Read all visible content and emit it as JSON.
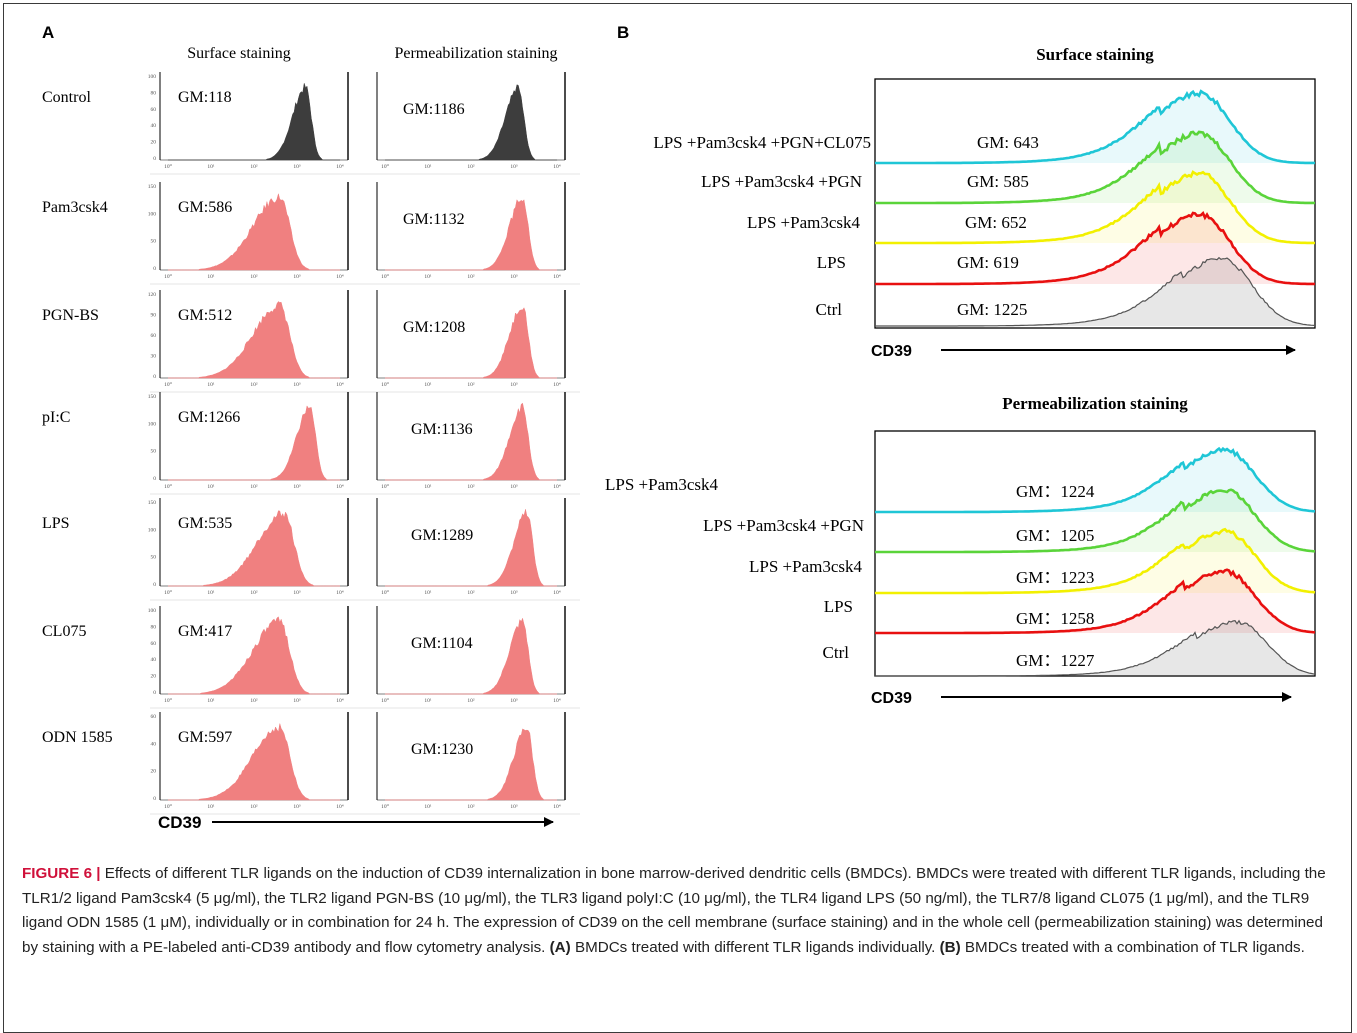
{
  "panel_a": {
    "letter": "A",
    "col_headers": [
      "Surface staining",
      "Permeabilization staining"
    ],
    "axis_label": "CD39",
    "rows": [
      {
        "label": "Control",
        "surface_gm": "GM:118",
        "perm_gm": "GM:1186",
        "color": "#3d3d3d",
        "yticks": [
          "100",
          "80",
          "60",
          "40",
          "20",
          "0"
        ],
        "surface_peak_log": 3.2,
        "perm_peak_log": 3.1
      },
      {
        "label": "Pam3csk4",
        "surface_gm": "GM:586",
        "perm_gm": "GM:1132",
        "color": "#f08080",
        "yticks": [
          "150",
          "100",
          "50",
          "0"
        ],
        "surface_peak_log": 2.6,
        "perm_peak_log": 3.2
      },
      {
        "label": "PGN-BS",
        "surface_gm": "GM:512",
        "perm_gm": "GM:1208",
        "color": "#f08080",
        "yticks": [
          "120",
          "90",
          "60",
          "30",
          "0"
        ],
        "surface_peak_log": 2.6,
        "perm_peak_log": 3.2
      },
      {
        "label": "pI:C",
        "surface_gm": "GM:1266",
        "perm_gm": "GM:1136",
        "color": "#f08080",
        "yticks": [
          "150",
          "100",
          "50",
          "0"
        ],
        "surface_peak_log": 3.3,
        "perm_peak_log": 3.2
      },
      {
        "label": "LPS",
        "surface_gm": "GM:535",
        "perm_gm": "GM:1289",
        "color": "#f08080",
        "yticks": [
          "150",
          "100",
          "50",
          "0"
        ],
        "surface_peak_log": 2.7,
        "perm_peak_log": 3.3
      },
      {
        "label": "CL075",
        "surface_gm": "GM:417",
        "perm_gm": "GM:1104",
        "color": "#f08080",
        "yticks": [
          "100",
          "80",
          "60",
          "40",
          "20",
          "0"
        ],
        "surface_peak_log": 2.6,
        "perm_peak_log": 3.2
      },
      {
        "label": "ODN 1585",
        "surface_gm": "GM:597",
        "perm_gm": "GM:1230",
        "color": "#f08080",
        "yticks": [
          "60",
          "40",
          "20",
          "0"
        ],
        "surface_peak_log": 2.6,
        "perm_peak_log": 3.3
      }
    ],
    "xticks": [
      "10⁰",
      "10¹",
      "10²",
      "10³",
      "10⁴"
    ]
  },
  "panel_b": {
    "letter": "B",
    "axis_label": "CD39",
    "groups": [
      {
        "title": "Surface staining",
        "traces": [
          {
            "label": "LPS +Pam3csk4 +PGN+CL075",
            "gm": "GM: 643",
            "color": "#1fc6d6"
          },
          {
            "label": "LPS +Pam3csk4 +PGN",
            "gm": "GM: 585",
            "color": "#5ad43a"
          },
          {
            "label": "LPS +Pam3csk4",
            "gm": "GM: 652",
            "color": "#f2f000"
          },
          {
            "label": "LPS",
            "gm": "GM: 619",
            "color": "#e81010"
          },
          {
            "label": "Ctrl",
            "gm": "GM: 1225",
            "color": "#555555"
          }
        ]
      },
      {
        "title": "Permeabilization staining",
        "traces": [
          {
            "label": "LPS +Pam3csk4",
            "gm": "GM：1224",
            "color": "#1fc6d6"
          },
          {
            "label": "LPS +Pam3csk4 +PGN",
            "gm": "GM：1205",
            "color": "#5ad43a"
          },
          {
            "label": "LPS +Pam3csk4",
            "gm": "GM：1223",
            "color": "#f2f000"
          },
          {
            "label": "LPS",
            "gm": "GM：1258",
            "color": "#e81010"
          },
          {
            "label": "Ctrl",
            "gm": "GM：1227",
            "color": "#555555"
          }
        ]
      }
    ]
  },
  "caption": {
    "figure_label": "FIGURE 6 |",
    "text_1": " Effects of different TLR ligands on the induction of CD39 internalization in bone marrow-derived dendritic cells (BMDCs). BMDCs were treated with different TLR ligands, including the TLR1/2 ligand Pam3csk4 (5 μg/ml), the TLR2 ligand PGN-BS (10 μg/ml), the TLR3 ligand polyI:C (10 μg/ml), the TLR4 ligand LPS (50 ng/ml), the TLR7/8 ligand CL075 (1 μg/ml), and the TLR9 ligand ODN 1585 (1 μM), individually or in combination for 24 h. The expression of CD39 on the cell membrane (surface staining) and in the whole cell (permeabilization staining) was determined by staining with a PE-labeled anti-CD39 antibody and flow cytometry analysis. ",
    "part_a_label": "(A)",
    "part_a_text": " BMDCs treated with different TLR ligands individually. ",
    "part_b_label": "(B)",
    "part_b_text": " BMDCs treated with a combination of TLR ligands."
  }
}
